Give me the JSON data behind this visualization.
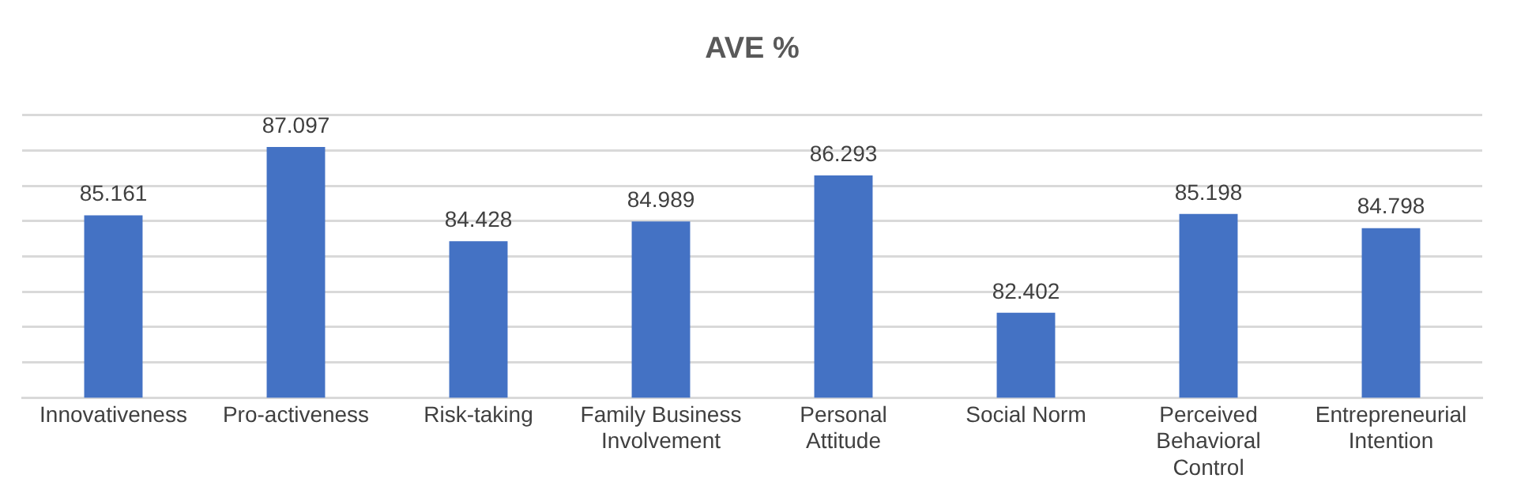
{
  "chart_data": {
    "type": "bar",
    "title": "AVE %",
    "categories": [
      "Innovativeness",
      "Pro-activeness",
      "Risk-taking",
      "Family Business Involvement",
      "Personal Attitude",
      "Social Norm",
      "Perceived Behavioral Control",
      "Entrepreneurial Intention"
    ],
    "values": [
      85.161,
      87.097,
      84.428,
      84.989,
      86.293,
      82.402,
      85.198,
      84.798
    ],
    "color": "#4472c4",
    "ylim": [
      80,
      88
    ],
    "yticks": [
      {
        "value": 80,
        "label": null
      },
      {
        "value": 81,
        "label": null
      },
      {
        "value": 82,
        "label": null
      },
      {
        "value": 83,
        "label": null
      },
      {
        "value": 84,
        "label": null
      },
      {
        "value": 85,
        "label": null
      },
      {
        "value": 86,
        "label": null
      },
      {
        "value": 87,
        "label": null
      },
      {
        "value": 88,
        "label": null
      }
    ],
    "tick_labels": "x",
    "grid": "y",
    "data_labels": true,
    "legend": false
  }
}
